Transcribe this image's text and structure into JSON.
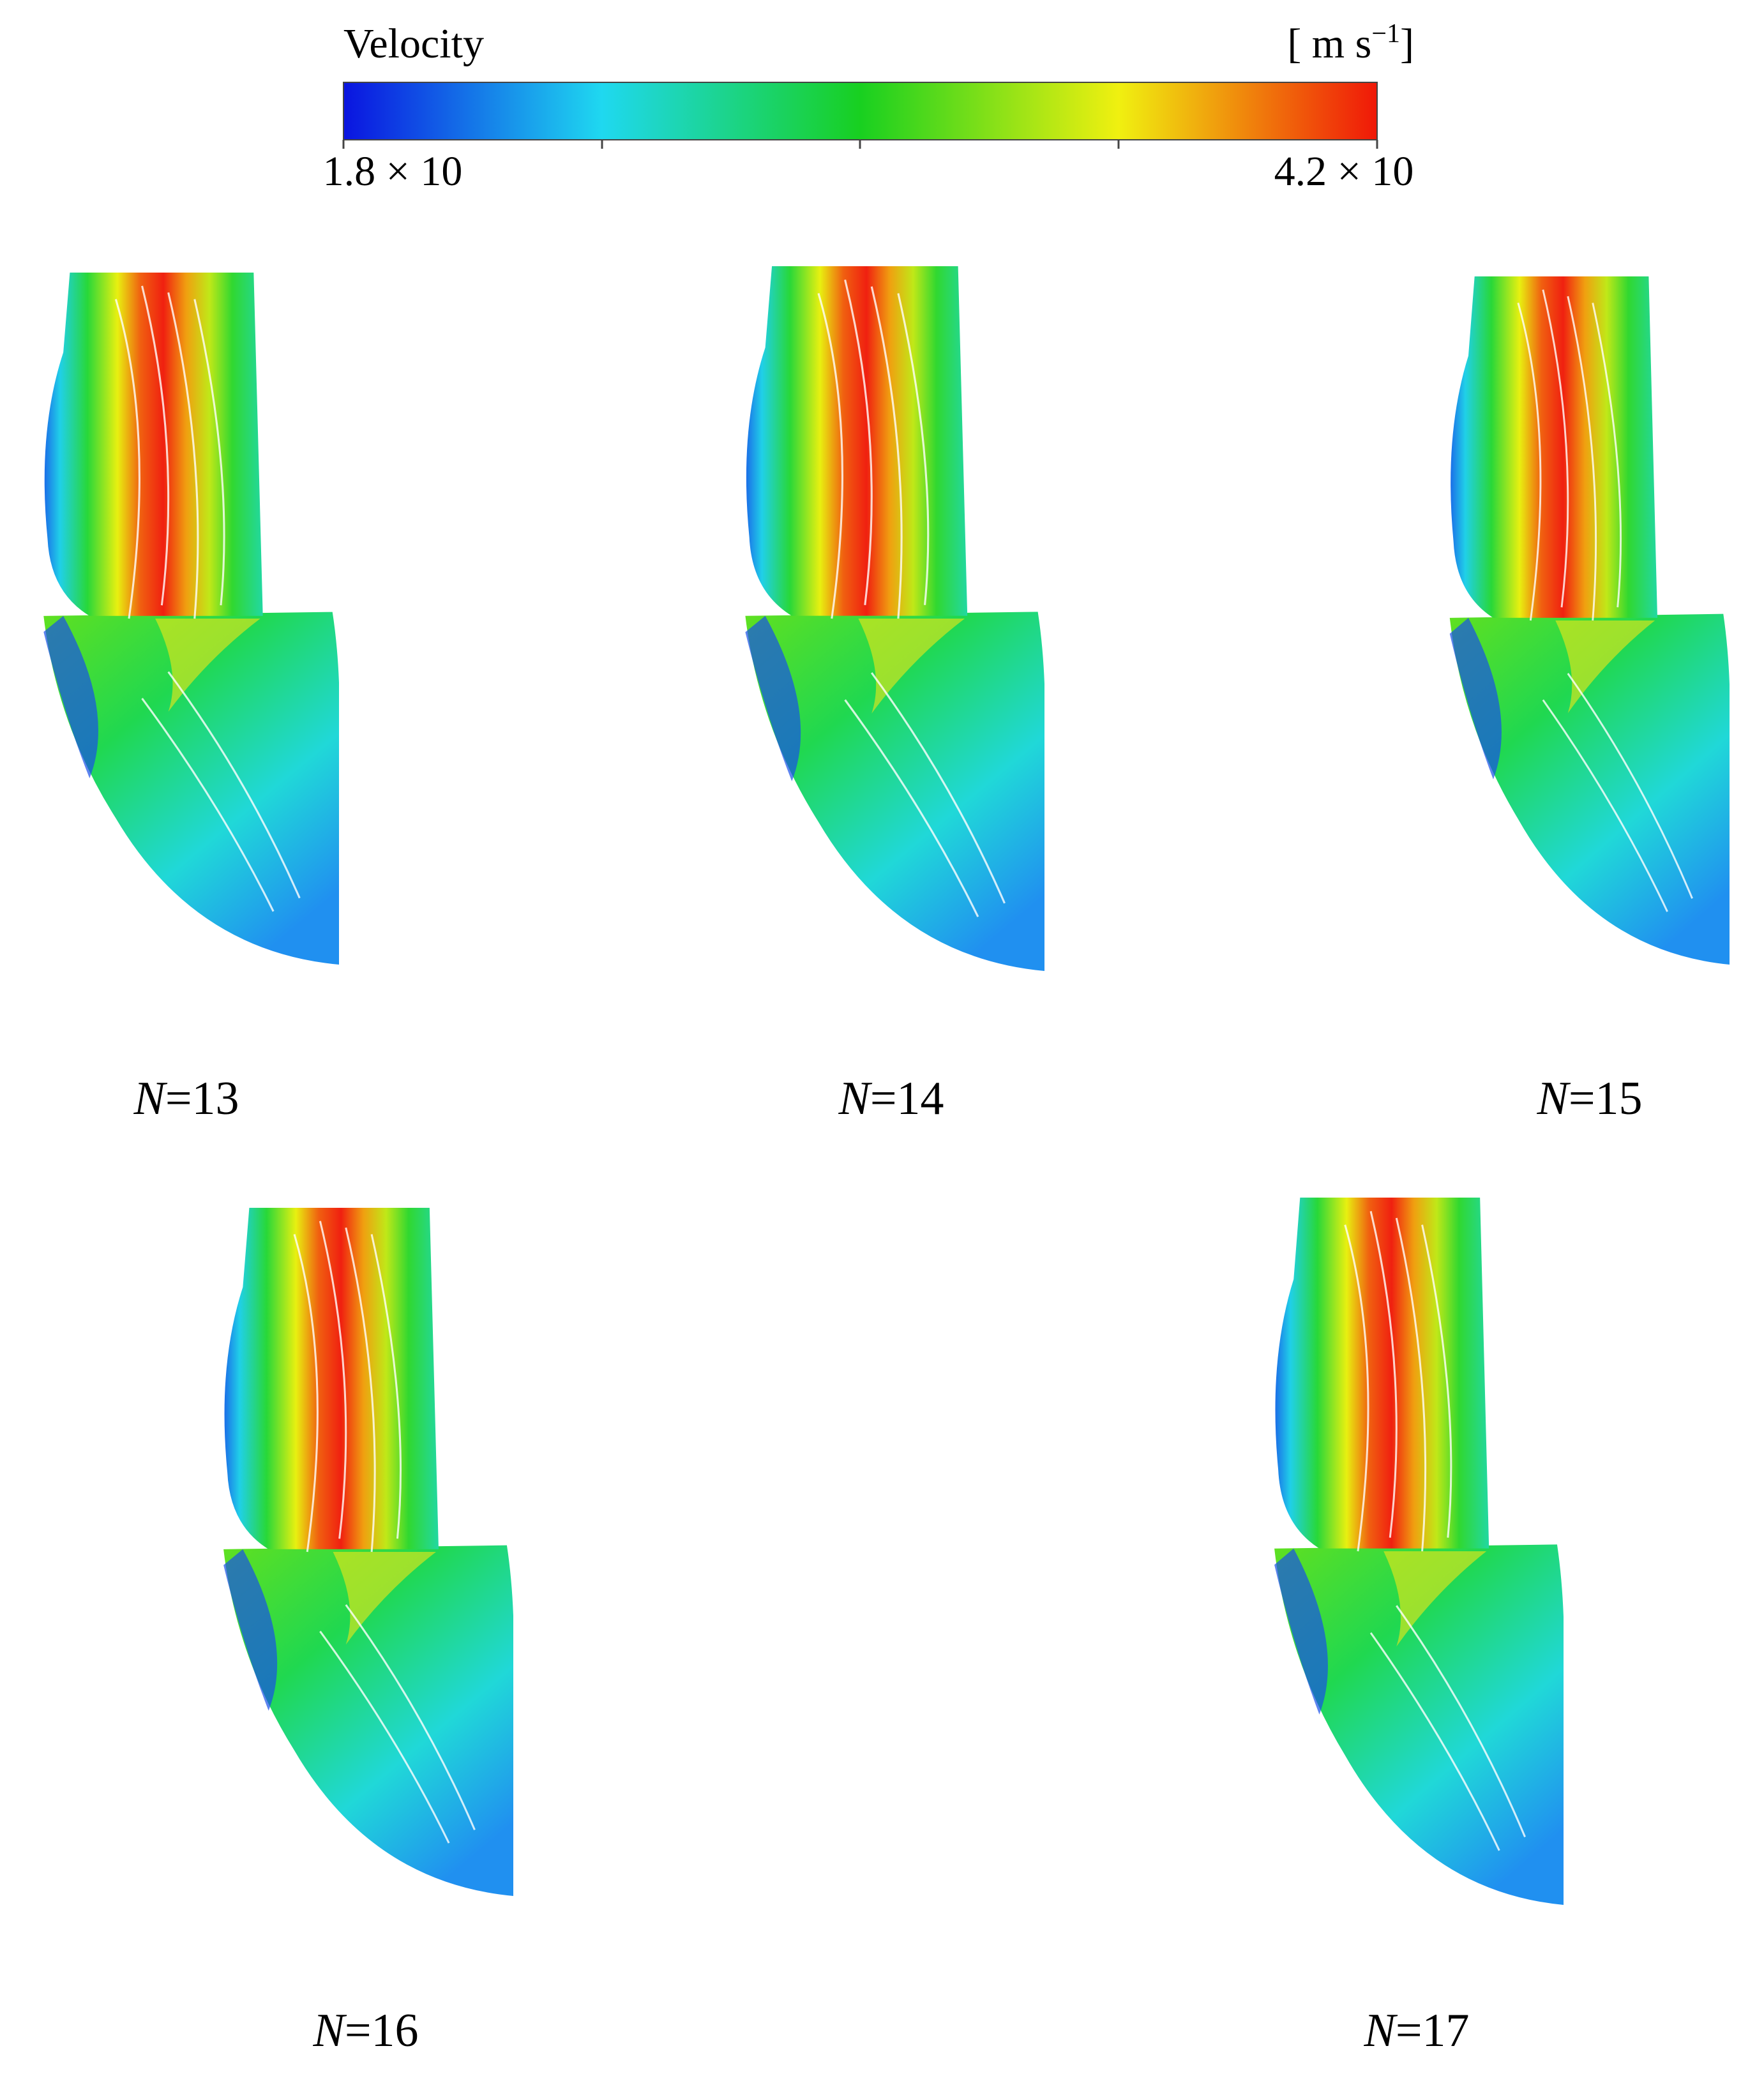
{
  "legend": {
    "title": "Velocity",
    "unit_open": "[ m s",
    "unit_exp": "−1",
    "unit_close": "]",
    "min_label": "1.8 × 10",
    "max_label": "4.2 × 10"
  },
  "panels": [
    {
      "symbol": "N",
      "value": "=13"
    },
    {
      "symbol": "N",
      "value": "=14"
    },
    {
      "symbol": "N",
      "value": "=15"
    },
    {
      "symbol": "N",
      "value": "=16"
    },
    {
      "symbol": "N",
      "value": "=17"
    }
  ]
}
